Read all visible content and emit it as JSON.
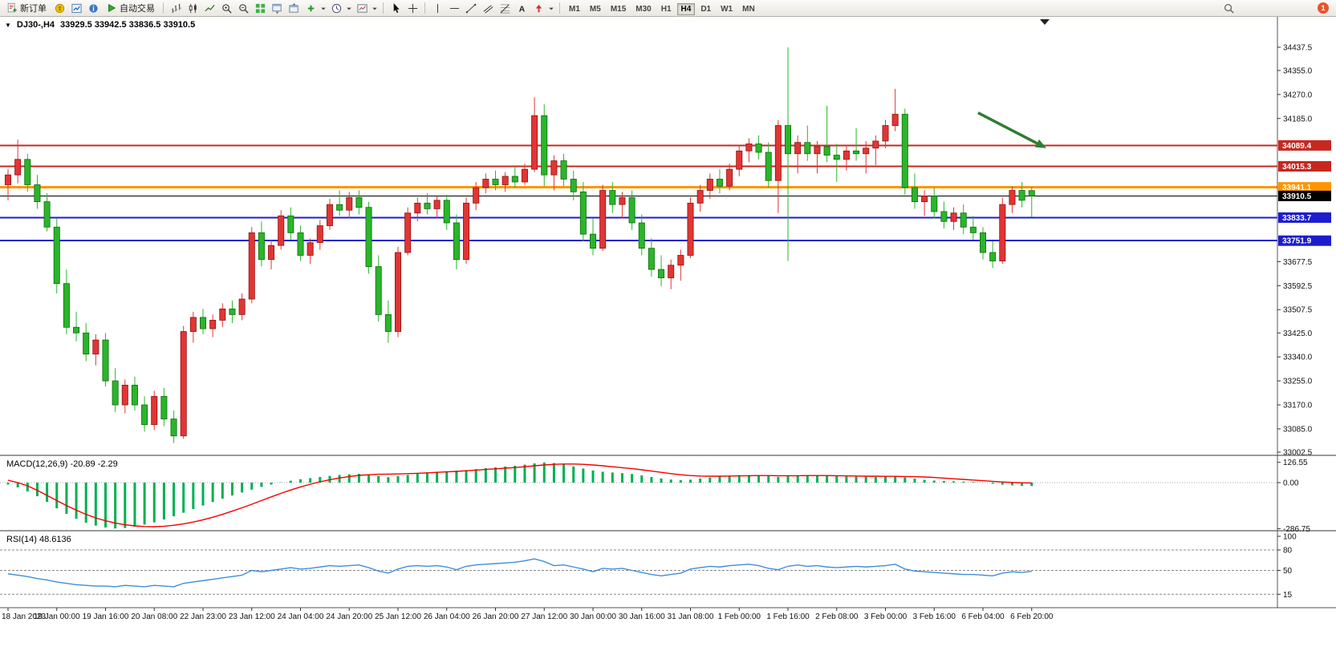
{
  "toolbar": {
    "new_order_label": "新订单",
    "auto_trading_label": "自动交易",
    "timeframes": [
      "M1",
      "M5",
      "M15",
      "M30",
      "H1",
      "H4",
      "D1",
      "W1",
      "MN"
    ],
    "active_timeframe": "H4",
    "notification_badge": "1"
  },
  "chart": {
    "title_symbol": "DJ30-,H4",
    "title_ohlc": "33929.5 33942.5 33836.5 33910.5"
  },
  "chart_data": {
    "type": "candlestick",
    "symbol": "DJ30-",
    "timeframe": "H4",
    "current_bar": {
      "open": 33929.5,
      "high": 33942.5,
      "low": 33836.5,
      "close": 33910.5
    },
    "up_color": "#e23535",
    "down_color": "#2bb52b",
    "bars_per_label": 5,
    "x_labels": [
      "18 Jan 2023",
      "19 Jan 00:00",
      "19 Jan 16:00",
      "20 Jan 08:00",
      "22 Jan 23:00",
      "23 Jan 12:00",
      "24 Jan 04:00",
      "24 Jan 20:00",
      "25 Jan 12:00",
      "26 Jan 04:00",
      "26 Jan 20:00",
      "27 Jan 12:00",
      "30 Jan 00:00",
      "30 Jan 16:00",
      "31 Jan 08:00",
      "1 Feb 00:00",
      "1 Feb 16:00",
      "2 Feb 08:00",
      "3 Feb 00:00",
      "3 Feb 16:00",
      "6 Feb 04:00",
      "6 Feb 20:00"
    ],
    "y_axis": {
      "min": 33002.5,
      "max": 34548.0,
      "ticks": [
        "34437.5",
        "34355.0",
        "34270.0",
        "34185.0",
        "33677.5",
        "33592.5",
        "33507.5",
        "33425.0",
        "33340.0",
        "33255.0",
        "33170.0",
        "33085.0",
        "33002.5"
      ]
    },
    "horizontal_lines": [
      {
        "price": 34089.4,
        "color": "#c62820",
        "width": 2
      },
      {
        "price": 34015.3,
        "color": "#c62820",
        "width": 2
      },
      {
        "price": 33941.1,
        "color": "#ff9500",
        "width": 3
      },
      {
        "price": 33833.7,
        "color": "#1d1dce",
        "width": 2
      },
      {
        "price": 33751.9,
        "color": "#1d1dce",
        "width": 2
      }
    ],
    "bid_line": {
      "price": 33910.5,
      "color": "#000000"
    },
    "annotations": [
      {
        "type": "arrow",
        "color": "#2e7d32",
        "from": {
          "bar": 99.5,
          "price": 34205
        },
        "to": {
          "bar": 106.5,
          "price": 34080
        }
      }
    ],
    "candles": [
      [
        33950,
        34005,
        33895,
        33985
      ],
      [
        33985,
        34110,
        33955,
        34040
      ],
      [
        34040,
        34060,
        33925,
        33950
      ],
      [
        33950,
        33985,
        33865,
        33890
      ],
      [
        33890,
        33920,
        33785,
        33800
      ],
      [
        33800,
        33830,
        33565,
        33600
      ],
      [
        33600,
        33650,
        33420,
        33445
      ],
      [
        33445,
        33500,
        33395,
        33425
      ],
      [
        33425,
        33460,
        33325,
        33350
      ],
      [
        33350,
        33420,
        33310,
        33400
      ],
      [
        33400,
        33425,
        33235,
        33255
      ],
      [
        33255,
        33300,
        33145,
        33170
      ],
      [
        33170,
        33260,
        33140,
        33240
      ],
      [
        33240,
        33270,
        33150,
        33170
      ],
      [
        33170,
        33200,
        33075,
        33100
      ],
      [
        33100,
        33220,
        33080,
        33200
      ],
      [
        33200,
        33230,
        33095,
        33120
      ],
      [
        33120,
        33150,
        33035,
        33060
      ],
      [
        33060,
        33450,
        33050,
        33430
      ],
      [
        33430,
        33500,
        33390,
        33480
      ],
      [
        33480,
        33510,
        33420,
        33440
      ],
      [
        33440,
        33490,
        33410,
        33470
      ],
      [
        33470,
        33530,
        33445,
        33510
      ],
      [
        33510,
        33540,
        33460,
        33490
      ],
      [
        33490,
        33565,
        33470,
        33545
      ],
      [
        33545,
        33800,
        33530,
        33780
      ],
      [
        33780,
        33820,
        33660,
        33685
      ],
      [
        33685,
        33755,
        33650,
        33735
      ],
      [
        33735,
        33860,
        33720,
        33840
      ],
      [
        33840,
        33870,
        33755,
        33780
      ],
      [
        33780,
        33805,
        33680,
        33700
      ],
      [
        33700,
        33760,
        33670,
        33745
      ],
      [
        33745,
        33825,
        33720,
        33805
      ],
      [
        33805,
        33900,
        33790,
        33880
      ],
      [
        33880,
        33930,
        33840,
        33860
      ],
      [
        33860,
        33925,
        33830,
        33905
      ],
      [
        33905,
        33930,
        33845,
        33870
      ],
      [
        33870,
        33890,
        33635,
        33660
      ],
      [
        33660,
        33700,
        33465,
        33490
      ],
      [
        33490,
        33540,
        33390,
        33430
      ],
      [
        33430,
        33730,
        33410,
        33710
      ],
      [
        33710,
        33870,
        33700,
        33850
      ],
      [
        33850,
        33905,
        33820,
        33885
      ],
      [
        33885,
        33920,
        33845,
        33865
      ],
      [
        33865,
        33910,
        33830,
        33895
      ],
      [
        33895,
        33915,
        33790,
        33815
      ],
      [
        33815,
        33845,
        33650,
        33685
      ],
      [
        33685,
        33905,
        33670,
        33885
      ],
      [
        33885,
        33960,
        33860,
        33940
      ],
      [
        33940,
        33990,
        33920,
        33970
      ],
      [
        33970,
        34000,
        33930,
        33950
      ],
      [
        33950,
        33995,
        33925,
        33980
      ],
      [
        33980,
        34015,
        33940,
        33960
      ],
      [
        33960,
        34025,
        33950,
        34005
      ],
      [
        34005,
        34260,
        33995,
        34195
      ],
      [
        34195,
        34235,
        33945,
        33985
      ],
      [
        33985,
        34055,
        33930,
        34035
      ],
      [
        34035,
        34060,
        33945,
        33970
      ],
      [
        33970,
        34000,
        33895,
        33925
      ],
      [
        33925,
        33960,
        33750,
        33775
      ],
      [
        33775,
        33830,
        33700,
        33725
      ],
      [
        33725,
        33950,
        33715,
        33930
      ],
      [
        33930,
        33960,
        33850,
        33880
      ],
      [
        33880,
        33925,
        33830,
        33905
      ],
      [
        33905,
        33930,
        33790,
        33815
      ],
      [
        33815,
        33845,
        33700,
        33725
      ],
      [
        33725,
        33760,
        33625,
        33650
      ],
      [
        33650,
        33700,
        33590,
        33620
      ],
      [
        33620,
        33685,
        33580,
        33665
      ],
      [
        33665,
        33720,
        33610,
        33700
      ],
      [
        33700,
        33905,
        33690,
        33885
      ],
      [
        33885,
        33950,
        33855,
        33930
      ],
      [
        33930,
        33990,
        33900,
        33970
      ],
      [
        33970,
        34005,
        33920,
        33945
      ],
      [
        33945,
        34025,
        33930,
        34005
      ],
      [
        34005,
        34090,
        33980,
        34070
      ],
      [
        34070,
        34115,
        34030,
        34095
      ],
      [
        34095,
        34125,
        34040,
        34065
      ],
      [
        34065,
        34100,
        33940,
        33965
      ],
      [
        33965,
        34180,
        33850,
        34160
      ],
      [
        34160,
        34437,
        33680,
        34060
      ],
      [
        34060,
        34125,
        33990,
        34100
      ],
      [
        34100,
        34160,
        34035,
        34060
      ],
      [
        34060,
        34105,
        33990,
        34085
      ],
      [
        34085,
        34230,
        34030,
        34055
      ],
      [
        34055,
        34095,
        33960,
        34040
      ],
      [
        34040,
        34090,
        34000,
        34070
      ],
      [
        34070,
        34150,
        34035,
        34060
      ],
      [
        34060,
        34105,
        33990,
        34080
      ],
      [
        34080,
        34125,
        34020,
        34105
      ],
      [
        34105,
        34180,
        34080,
        34160
      ],
      [
        34160,
        34290,
        34140,
        34200
      ],
      [
        34200,
        34220,
        33915,
        33940
      ],
      [
        33940,
        33990,
        33865,
        33890
      ],
      [
        33890,
        33930,
        33840,
        33910
      ],
      [
        33910,
        33940,
        33830,
        33855
      ],
      [
        33855,
        33890,
        33795,
        33820
      ],
      [
        33820,
        33870,
        33790,
        33850
      ],
      [
        33850,
        33880,
        33775,
        33800
      ],
      [
        33800,
        33840,
        33755,
        33780
      ],
      [
        33780,
        33800,
        33685,
        33710
      ],
      [
        33710,
        33750,
        33655,
        33680
      ],
      [
        33680,
        33905,
        33670,
        33880
      ],
      [
        33880,
        33945,
        33850,
        33930
      ],
      [
        33930,
        33960,
        33870,
        33895
      ],
      [
        33929.5,
        33942.5,
        33836.5,
        33910.5
      ]
    ],
    "macd": {
      "label": "MACD(12,26,9) -20.89 -2.29",
      "name": "MACD(12,26,9)",
      "values_text": "-20.89 -2.29",
      "hist_color": "#00b050",
      "signal_color": "#f40000",
      "axis_ticks": [
        "126.55",
        "0.00",
        "-286.75"
      ],
      "histogram": [
        -12,
        -30,
        -55,
        -85,
        -120,
        -160,
        -195,
        -225,
        -250,
        -268,
        -280,
        -286,
        -283,
        -274,
        -262,
        -248,
        -230,
        -210,
        -188,
        -165,
        -143,
        -121,
        -100,
        -80,
        -62,
        -44,
        -27,
        -12,
        2,
        12,
        21,
        28,
        35,
        42,
        48,
        52,
        55,
        50,
        42,
        34,
        40,
        48,
        56,
        63,
        68,
        71,
        74,
        78,
        84,
        90,
        95,
        100,
        105,
        112,
        120,
        126,
        122,
        113,
        101,
        88,
        76,
        68,
        63,
        59,
        54,
        45,
        35,
        26,
        19,
        15,
        18,
        25,
        32,
        38,
        43,
        46,
        47,
        45,
        41,
        36,
        41,
        45,
        47,
        46,
        43,
        41,
        39,
        37,
        36,
        35,
        37,
        39,
        33,
        25,
        17,
        13,
        10,
        8,
        6,
        4,
        -1,
        -7,
        -13,
        -17,
        -20,
        -20.89
      ],
      "signal": [
        15,
        0,
        -20,
        -48,
        -80,
        -112,
        -143,
        -172,
        -198,
        -220,
        -238,
        -252,
        -263,
        -270,
        -274,
        -275,
        -272,
        -266,
        -257,
        -246,
        -232,
        -216,
        -198,
        -178,
        -157,
        -135,
        -112,
        -89,
        -67,
        -46,
        -27,
        -10,
        5,
        18,
        29,
        38,
        45,
        49,
        52,
        53,
        54,
        56,
        58,
        61,
        64,
        67,
        70,
        74,
        78,
        82,
        86,
        90,
        94,
        99,
        105,
        110,
        114,
        116,
        116,
        114,
        110,
        105,
        99,
        93,
        87,
        80,
        72,
        64,
        56,
        49,
        44,
        41,
        40,
        40,
        41,
        42,
        43,
        44,
        44,
        43,
        43,
        43,
        44,
        44,
        44,
        43,
        42,
        41,
        40,
        40,
        39,
        39,
        38,
        37,
        35,
        32,
        28,
        24,
        20,
        16,
        12,
        8,
        4,
        1,
        -1,
        -2.29
      ]
    },
    "rsi": {
      "label": "RSI(14) 48.6136",
      "name": "RSI(14)",
      "value_text": "48.6136",
      "color": "#3f8edc",
      "levels": [
        80,
        50,
        15
      ],
      "axis_ticks": [
        "100",
        "80",
        "50",
        "15"
      ],
      "values": [
        45,
        43,
        41,
        38,
        36,
        33,
        31,
        29,
        28,
        27,
        27,
        26,
        28,
        27,
        26,
        28,
        27,
        26,
        31,
        33,
        35,
        37,
        39,
        41,
        43,
        50,
        48,
        50,
        52,
        54,
        52,
        53,
        55,
        57,
        56,
        57,
        58,
        54,
        49,
        46,
        52,
        56,
        57,
        56,
        57,
        55,
        51,
        56,
        58,
        59,
        60,
        61,
        62,
        64,
        67,
        63,
        57,
        58,
        55,
        52,
        48,
        53,
        52,
        53,
        50,
        47,
        44,
        42,
        44,
        46,
        52,
        54,
        56,
        55,
        57,
        58,
        59,
        57,
        53,
        51,
        56,
        58,
        56,
        57,
        55,
        54,
        55,
        56,
        55,
        56,
        57,
        59,
        52,
        49,
        48,
        47,
        46,
        45,
        44,
        44,
        43,
        42,
        46,
        48,
        47,
        48.61
      ]
    }
  }
}
